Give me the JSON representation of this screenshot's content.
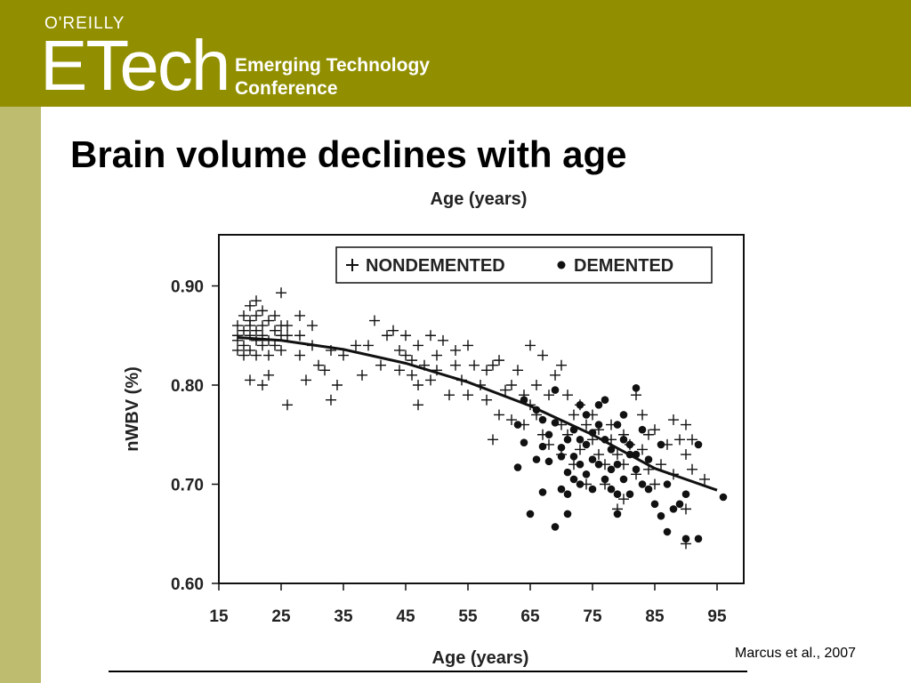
{
  "header": {
    "publisher": "O'REILLY",
    "logo": "ETech",
    "conference_line1": "Emerging Technology",
    "conference_line2": "Conference",
    "background_color": "#918f00",
    "sidebar_color": "#bdbc6f"
  },
  "slide": {
    "title": "Brain volume declines with age",
    "citation": "Marcus et al., 2007"
  },
  "chart_data": {
    "type": "scatter",
    "title": "",
    "top_axis_label": "Age (years)",
    "xlabel": "Age (years)",
    "ylabel": "nWBV (%)",
    "xlim": [
      15,
      99
    ],
    "ylim": [
      0.6,
      0.905
    ],
    "x_ticks": [
      15,
      25,
      35,
      45,
      55,
      65,
      75,
      85,
      95
    ],
    "y_ticks": [
      0.6,
      0.7,
      0.8,
      0.9
    ],
    "x_tick_labels": [
      "15",
      "25",
      "35",
      "45",
      "55",
      "65",
      "75",
      "85",
      "95"
    ],
    "y_tick_labels": [
      "0.60",
      "0.70",
      "0.80",
      "0.90"
    ],
    "grid": false,
    "legend_position": "top-right",
    "series": [
      {
        "name": "NONDEMENTED",
        "marker": "+",
        "points": [
          [
            18,
            0.845
          ],
          [
            18,
            0.835
          ],
          [
            18,
            0.86
          ],
          [
            18,
            0.85
          ],
          [
            19,
            0.87
          ],
          [
            19,
            0.84
          ],
          [
            19,
            0.855
          ],
          [
            19,
            0.83
          ],
          [
            20,
            0.88
          ],
          [
            20,
            0.865
          ],
          [
            20,
            0.85
          ],
          [
            20,
            0.835
          ],
          [
            20,
            0.86
          ],
          [
            20,
            0.805
          ],
          [
            21,
            0.885
          ],
          [
            21,
            0.87
          ],
          [
            21,
            0.845
          ],
          [
            21,
            0.83
          ],
          [
            21,
            0.855
          ],
          [
            22,
            0.875
          ],
          [
            22,
            0.86
          ],
          [
            22,
            0.84
          ],
          [
            22,
            0.85
          ],
          [
            22,
            0.8
          ],
          [
            23,
            0.865
          ],
          [
            23,
            0.845
          ],
          [
            23,
            0.83
          ],
          [
            23,
            0.81
          ],
          [
            24,
            0.855
          ],
          [
            24,
            0.84
          ],
          [
            24,
            0.87
          ],
          [
            25,
            0.893
          ],
          [
            25,
            0.86
          ],
          [
            25,
            0.85
          ],
          [
            25,
            0.835
          ],
          [
            26,
            0.78
          ],
          [
            26,
            0.85
          ],
          [
            26,
            0.86
          ],
          [
            28,
            0.87
          ],
          [
            28,
            0.85
          ],
          [
            28,
            0.83
          ],
          [
            29,
            0.805
          ],
          [
            30,
            0.86
          ],
          [
            30,
            0.84
          ],
          [
            31,
            0.82
          ],
          [
            32,
            0.815
          ],
          [
            33,
            0.785
          ],
          [
            33,
            0.835
          ],
          [
            34,
            0.8
          ],
          [
            35,
            0.83
          ],
          [
            37,
            0.84
          ],
          [
            38,
            0.81
          ],
          [
            39,
            0.84
          ],
          [
            40,
            0.865
          ],
          [
            41,
            0.82
          ],
          [
            42,
            0.85
          ],
          [
            43,
            0.855
          ],
          [
            44,
            0.815
          ],
          [
            44,
            0.835
          ],
          [
            45,
            0.85
          ],
          [
            45,
            0.83
          ],
          [
            46,
            0.81
          ],
          [
            46,
            0.825
          ],
          [
            47,
            0.78
          ],
          [
            47,
            0.84
          ],
          [
            47,
            0.8
          ],
          [
            48,
            0.82
          ],
          [
            49,
            0.85
          ],
          [
            49,
            0.805
          ],
          [
            50,
            0.83
          ],
          [
            50,
            0.815
          ],
          [
            51,
            0.845
          ],
          [
            52,
            0.79
          ],
          [
            53,
            0.835
          ],
          [
            53,
            0.82
          ],
          [
            54,
            0.805
          ],
          [
            55,
            0.79
          ],
          [
            55,
            0.84
          ],
          [
            56,
            0.82
          ],
          [
            57,
            0.8
          ],
          [
            58,
            0.785
          ],
          [
            58,
            0.815
          ],
          [
            59,
            0.745
          ],
          [
            59,
            0.82
          ],
          [
            60,
            0.77
          ],
          [
            60,
            0.825
          ],
          [
            61,
            0.795
          ],
          [
            62,
            0.765
          ],
          [
            62,
            0.8
          ],
          [
            63,
            0.815
          ],
          [
            64,
            0.79
          ],
          [
            64,
            0.76
          ],
          [
            65,
            0.84
          ],
          [
            65,
            0.78
          ],
          [
            66,
            0.8
          ],
          [
            66,
            0.77
          ],
          [
            67,
            0.83
          ],
          [
            67,
            0.75
          ],
          [
            68,
            0.79
          ],
          [
            68,
            0.74
          ],
          [
            69,
            0.81
          ],
          [
            70,
            0.82
          ],
          [
            70,
            0.76
          ],
          [
            70,
            0.73
          ],
          [
            71,
            0.79
          ],
          [
            71,
            0.75
          ],
          [
            72,
            0.77
          ],
          [
            72,
            0.72
          ],
          [
            73,
            0.78
          ],
          [
            73,
            0.735
          ],
          [
            74,
            0.76
          ],
          [
            74,
            0.7
          ],
          [
            75,
            0.745
          ],
          [
            75,
            0.77
          ],
          [
            76,
            0.73
          ],
          [
            76,
            0.755
          ],
          [
            77,
            0.72
          ],
          [
            77,
            0.7
          ],
          [
            78,
            0.745
          ],
          [
            78,
            0.76
          ],
          [
            79,
            0.73
          ],
          [
            79,
            0.675
          ],
          [
            80,
            0.75
          ],
          [
            80,
            0.72
          ],
          [
            80,
            0.685
          ],
          [
            81,
            0.74
          ],
          [
            82,
            0.71
          ],
          [
            82,
            0.79
          ],
          [
            83,
            0.77
          ],
          [
            83,
            0.735
          ],
          [
            84,
            0.75
          ],
          [
            84,
            0.715
          ],
          [
            85,
            0.7
          ],
          [
            85,
            0.755
          ],
          [
            86,
            0.72
          ],
          [
            87,
            0.74
          ],
          [
            88,
            0.765
          ],
          [
            88,
            0.71
          ],
          [
            89,
            0.745
          ],
          [
            90,
            0.76
          ],
          [
            90,
            0.73
          ],
          [
            90,
            0.675
          ],
          [
            90,
            0.64
          ],
          [
            91,
            0.745
          ],
          [
            91,
            0.715
          ],
          [
            93,
            0.705
          ]
        ]
      },
      {
        "name": "DEMENTED",
        "marker": "circle",
        "points": [
          [
            63,
            0.76
          ],
          [
            63,
            0.717
          ],
          [
            64,
            0.785
          ],
          [
            64,
            0.742
          ],
          [
            65,
            0.67
          ],
          [
            66,
            0.775
          ],
          [
            66,
            0.725
          ],
          [
            67,
            0.765
          ],
          [
            67,
            0.692
          ],
          [
            67,
            0.738
          ],
          [
            68,
            0.75
          ],
          [
            68,
            0.723
          ],
          [
            69,
            0.795
          ],
          [
            69,
            0.762
          ],
          [
            69,
            0.657
          ],
          [
            70,
            0.737
          ],
          [
            70,
            0.695
          ],
          [
            70,
            0.728
          ],
          [
            71,
            0.745
          ],
          [
            71,
            0.712
          ],
          [
            71,
            0.69
          ],
          [
            71,
            0.67
          ],
          [
            72,
            0.755
          ],
          [
            72,
            0.728
          ],
          [
            72,
            0.705
          ],
          [
            73,
            0.78
          ],
          [
            73,
            0.745
          ],
          [
            73,
            0.72
          ],
          [
            73,
            0.7
          ],
          [
            74,
            0.77
          ],
          [
            74,
            0.74
          ],
          [
            74,
            0.71
          ],
          [
            75,
            0.752
          ],
          [
            75,
            0.725
          ],
          [
            75,
            0.695
          ],
          [
            76,
            0.78
          ],
          [
            76,
            0.76
          ],
          [
            76,
            0.72
          ],
          [
            77,
            0.745
          ],
          [
            77,
            0.705
          ],
          [
            77,
            0.785
          ],
          [
            78,
            0.735
          ],
          [
            78,
            0.695
          ],
          [
            78,
            0.715
          ],
          [
            79,
            0.76
          ],
          [
            79,
            0.72
          ],
          [
            79,
            0.69
          ],
          [
            79,
            0.67
          ],
          [
            80,
            0.745
          ],
          [
            80,
            0.705
          ],
          [
            80,
            0.77
          ],
          [
            81,
            0.73
          ],
          [
            81,
            0.69
          ],
          [
            81,
            0.74
          ],
          [
            82,
            0.797
          ],
          [
            82,
            0.715
          ],
          [
            82,
            0.73
          ],
          [
            83,
            0.7
          ],
          [
            83,
            0.755
          ],
          [
            84,
            0.725
          ],
          [
            84,
            0.695
          ],
          [
            85,
            0.68
          ],
          [
            86,
            0.74
          ],
          [
            86,
            0.668
          ],
          [
            87,
            0.7
          ],
          [
            87,
            0.652
          ],
          [
            88,
            0.675
          ],
          [
            89,
            0.68
          ],
          [
            90,
            0.69
          ],
          [
            90,
            0.645
          ],
          [
            92,
            0.74
          ],
          [
            92,
            0.645
          ],
          [
            96,
            0.687
          ]
        ]
      }
    ],
    "trend_line": [
      [
        18,
        0.848
      ],
      [
        25,
        0.845
      ],
      [
        35,
        0.836
      ],
      [
        45,
        0.822
      ],
      [
        55,
        0.803
      ],
      [
        65,
        0.779
      ],
      [
        75,
        0.75
      ],
      [
        85,
        0.716
      ],
      [
        95,
        0.694
      ]
    ],
    "colors": {
      "markers": "#111111",
      "trend_line": "#111111",
      "frame": "#111111"
    }
  }
}
